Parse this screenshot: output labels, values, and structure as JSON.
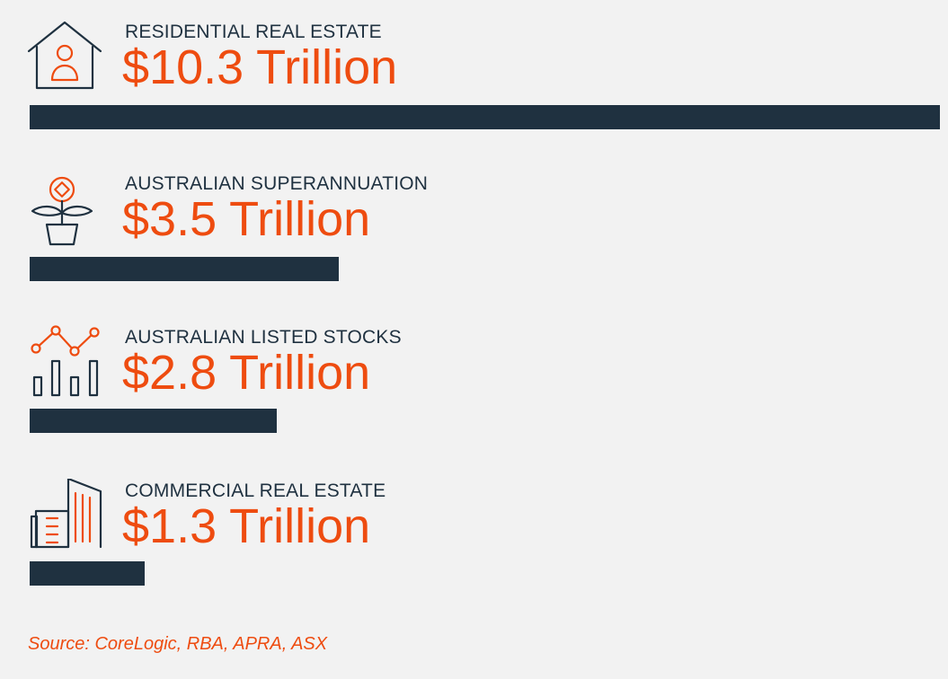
{
  "chart_data": {
    "type": "bar",
    "orientation": "horizontal",
    "unit": "Trillion",
    "categories": [
      "RESIDENTIAL REAL ESTATE",
      "AUSTRALIAN SUPERANNUATION",
      "AUSTRALIAN LISTED STOCKS",
      "COMMERCIAL REAL ESTATE"
    ],
    "values": [
      10.3,
      3.5,
      2.8,
      1.3
    ],
    "value_labels": [
      "$10.3 Trillion",
      "$3.5 Trillion",
      "$2.8 Trillion",
      "$1.3 Trillion"
    ],
    "icons": [
      "house-person-icon",
      "plant-coin-icon",
      "line-bar-chart-icon",
      "office-buildings-icon"
    ],
    "xlim": [
      0,
      10.3
    ],
    "grid": false,
    "legend": "none"
  },
  "colors": {
    "background": "#f2f2f2",
    "bar": "#1f3140",
    "accent": "#ee4c10",
    "label": "#1f3140"
  },
  "source": "Source: CoreLogic, RBA, APRA, ASX"
}
